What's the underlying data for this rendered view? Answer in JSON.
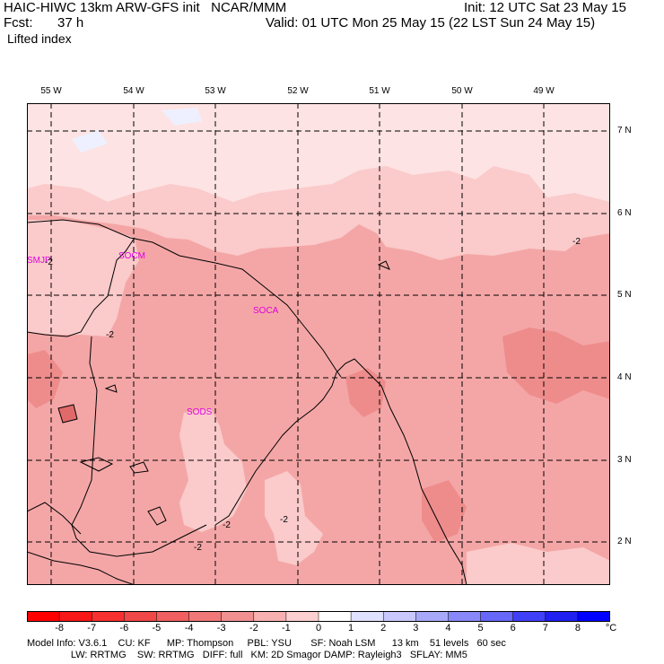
{
  "header": {
    "model_line": "HAIC-HIWC 13km ARW-GFS init   NCAR/MMM",
    "init": "Init: 12 UTC Sat 23 May 15",
    "fcst_label": "Fcst:",
    "fcst_value": "37 h",
    "valid": "Valid: 01 UTC Mon 25 May 15 (22 LST Sun 24 May 15)",
    "field": "Lifted index"
  },
  "map": {
    "longitudes": [
      "55 W",
      "54 W",
      "53 W",
      "52 W",
      "51 W",
      "50 W",
      "49 W"
    ],
    "latitudes": [
      "7 N",
      "6 N",
      "5 N",
      "4 N",
      "3 N",
      "2 N"
    ],
    "stations": [
      "SMJP",
      "SOCM",
      "SOCA",
      "SODS"
    ],
    "contour_labels": [
      "-2",
      "-2",
      "-2",
      "-2",
      "-2",
      "-2"
    ],
    "fill_colors": {
      "minus3_to_minus2": "#f4a6a6",
      "minus2_to_minus1": "#fbcaca",
      "minus1_to_0": "#fde3e3",
      "zero_to_1": "#eef0ff",
      "minus4_to_minus3": "#ee8c8c",
      "minus5_to_minus4": "#e06a6a"
    }
  },
  "colorbar": {
    "ticks": [
      "-8",
      "-7",
      "-6",
      "-5",
      "-4",
      "-3",
      "-2",
      "-1",
      "0",
      "1",
      "2",
      "3",
      "4",
      "5",
      "6",
      "7",
      "8"
    ],
    "unit": "°C",
    "colors": [
      "#ff0000",
      "#f81818",
      "#f83030",
      "#f04848",
      "#f06060",
      "#f07878",
      "#f09090",
      "#f8b0b0",
      "#fcd0d0",
      "#ffffff",
      "#e0e0ff",
      "#c8c8fc",
      "#a8a8f8",
      "#8888f8",
      "#6868f8",
      "#4040f8",
      "#2020f0",
      "#0000ff"
    ]
  },
  "footer": {
    "line1": "Model Info: V3.6.1    CU: KF      MP: Thompson     PBL: YSU       SF: Noah LSM      13 km    51 levels   60 sec",
    "line2": "                LW: RRTMG    SW: RRTMG   DIFF: full   KM: 2D Smagor DAMP: Rayleigh3   SFLAY: MM5"
  }
}
